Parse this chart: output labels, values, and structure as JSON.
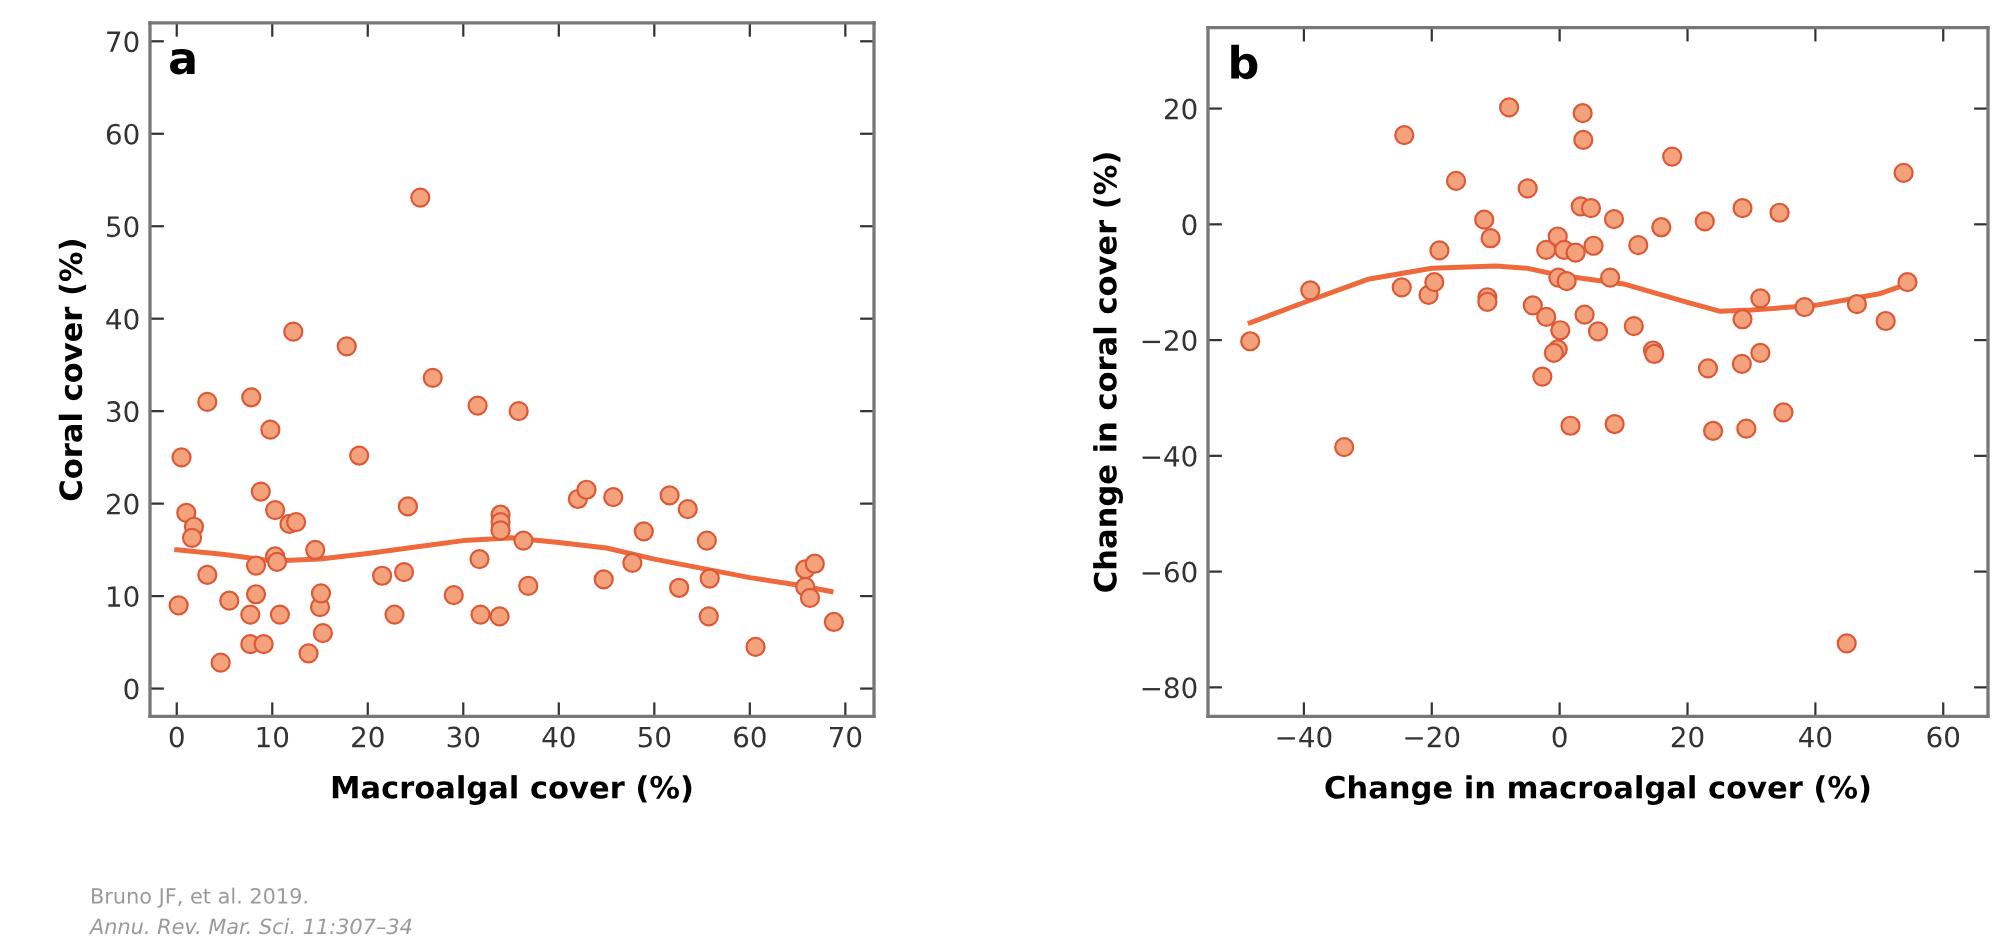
{
  "chart_data": [
    {
      "type": "scatter",
      "xlabel": "Macroalgal cover (%)",
      "ylabel": "Coral cover (%)",
      "xlim": [
        -2.8,
        73
      ],
      "ylim": [
        -3,
        72
      ],
      "xticks": [
        0,
        10,
        20,
        30,
        40,
        50,
        60,
        70
      ],
      "yticks": [
        0,
        10,
        20,
        30,
        40,
        50,
        60,
        70
      ],
      "marker": "circle",
      "grid": false,
      "annotations": [
        "a",
        "Bruno JF, et al. 2019.",
        "Annu. Rev. Mar. Sci. 11:307–34"
      ],
      "series": [
        {
          "color": "#f4a27c",
          "x": [
            0.2,
            0.5,
            1,
            1.8,
            1.6,
            3.2,
            3.2,
            4.6,
            5.5,
            7.8,
            7.7,
            7.7,
            8.3,
            8.3,
            8.8,
            9.1,
            9.8,
            10.3,
            10.3,
            10.5,
            10.8,
            11.8,
            12.2,
            12.5,
            13.8,
            14.5,
            15,
            15.1,
            15.3,
            17.8,
            19.1,
            21.5,
            22.8,
            23.8,
            24.2,
            25.5,
            26.8,
            29,
            31.5,
            31.7,
            31.8,
            33.9,
            33.9,
            33.9,
            33.8,
            35.8,
            36.3,
            36.8,
            42,
            42.9,
            44.7,
            45.7,
            47.7,
            48.9,
            51.6,
            52.6,
            53.5,
            55.5,
            55.8,
            55.7,
            60.6,
            65.8,
            65.8,
            66.3,
            66.8,
            68.8
          ],
          "values": [
            9,
            25,
            19,
            17.5,
            16.3,
            31,
            12.3,
            2.8,
            9.5,
            31.5,
            8,
            4.8,
            10.2,
            13.3,
            21.3,
            4.8,
            28,
            19.3,
            14.3,
            13.7,
            8,
            17.8,
            38.6,
            18,
            3.8,
            15,
            8.8,
            10.3,
            6,
            37,
            25.2,
            12.2,
            8,
            12.6,
            19.7,
            53.1,
            33.6,
            10.1,
            30.6,
            14,
            8,
            18.8,
            18,
            17.1,
            7.8,
            30,
            16,
            11.1,
            20.5,
            21.5,
            11.8,
            20.7,
            13.6,
            17,
            20.9,
            10.9,
            19.4,
            16,
            11.9,
            7.8,
            4.5,
            12.9,
            11,
            9.8,
            13.5,
            7.2
          ]
        },
        {
          "type": "line",
          "color": "#ee6a3c",
          "marker": "none",
          "x": [
            0,
            5,
            10,
            15,
            20,
            25,
            30,
            35,
            40,
            45,
            50,
            55,
            60,
            65,
            68.5
          ],
          "values": [
            15,
            14.5,
            13.8,
            14,
            14.6,
            15.3,
            16,
            16.3,
            15.8,
            15.2,
            14,
            13,
            12,
            11.2,
            10.5
          ]
        }
      ]
    },
    {
      "type": "scatter",
      "xlabel": "Change in macroalgal cover (%)",
      "ylabel": "Change in coral cover (%)",
      "xlim": [
        -55,
        67
      ],
      "ylim": [
        -85,
        34
      ],
      "xticks": [
        {
          "value": -40,
          "label": "−40"
        },
        {
          "value": -20,
          "label": "−20"
        },
        0,
        20,
        40,
        60
      ],
      "yticks": [
        {
          "value": -80,
          "label": "−80"
        },
        {
          "value": -60,
          "label": "−60"
        },
        {
          "value": -40,
          "label": "−40"
        },
        {
          "value": -20,
          "label": "−20"
        },
        0,
        20
      ],
      "marker": "circle",
      "grid": false,
      "annotations": [
        "b"
      ],
      "series": [
        {
          "color": "#f4a27c",
          "x": [
            -48.4,
            -39,
            -33.7,
            -24.3,
            -24.7,
            -20.5,
            -19.6,
            -18.8,
            -16.2,
            -11.8,
            -10.8,
            -11.3,
            -11.3,
            -7.9,
            -5,
            -4.2,
            -2.7,
            -2.1,
            -2.1,
            -0.3,
            -0.2,
            0.1,
            -0.3,
            -0.9,
            0.7,
            1.1,
            1.7,
            2.5,
            3.6,
            3.7,
            3.3,
            4.9,
            3.9,
            5.3,
            6,
            7.9,
            8.5,
            8.6,
            12.3,
            11.6,
            14.6,
            14.8,
            15.9,
            17.6,
            22.7,
            23.2,
            24,
            28.6,
            28.6,
            28.5,
            29.2,
            31.4,
            31.4,
            34.4,
            35,
            38.3,
            44.9,
            46.5,
            51,
            53.8,
            54.4
          ],
          "values": [
            -20.2,
            -11.4,
            -38.5,
            15.4,
            -10.9,
            -12.2,
            -10,
            -4.5,
            7.5,
            0.8,
            -2.4,
            -12.6,
            -13.4,
            20.2,
            6.2,
            -14,
            -26.3,
            -16,
            -4.4,
            -2.1,
            -9.2,
            -18.3,
            -21.6,
            -22.2,
            -4.4,
            -9.8,
            -34.8,
            -4.9,
            19.2,
            14.6,
            3.1,
            2.8,
            -15.6,
            -3.7,
            -18.5,
            -9.2,
            0.9,
            -34.5,
            -3.6,
            -17.6,
            -21.8,
            -22.4,
            -0.5,
            11.7,
            0.5,
            -24.9,
            -35.7,
            2.8,
            -16.4,
            -24.1,
            -35.3,
            -12.8,
            -22.2,
            2,
            -32.5,
            -14.3,
            -72.4,
            -13.8,
            -16.7,
            8.9,
            -10
          ]
        },
        {
          "type": "line",
          "color": "#ee6a3c",
          "marker": "none",
          "x": [
            -48.4,
            -40,
            -30,
            -20,
            -10,
            -5,
            0,
            10,
            20,
            25,
            30,
            40,
            50,
            54.4
          ],
          "values": [
            -17,
            -13.5,
            -9.5,
            -7.6,
            -7.2,
            -7.6,
            -8.8,
            -10.3,
            -13.5,
            -15,
            -14.8,
            -14,
            -12,
            -10.3
          ]
        }
      ]
    }
  ]
}
